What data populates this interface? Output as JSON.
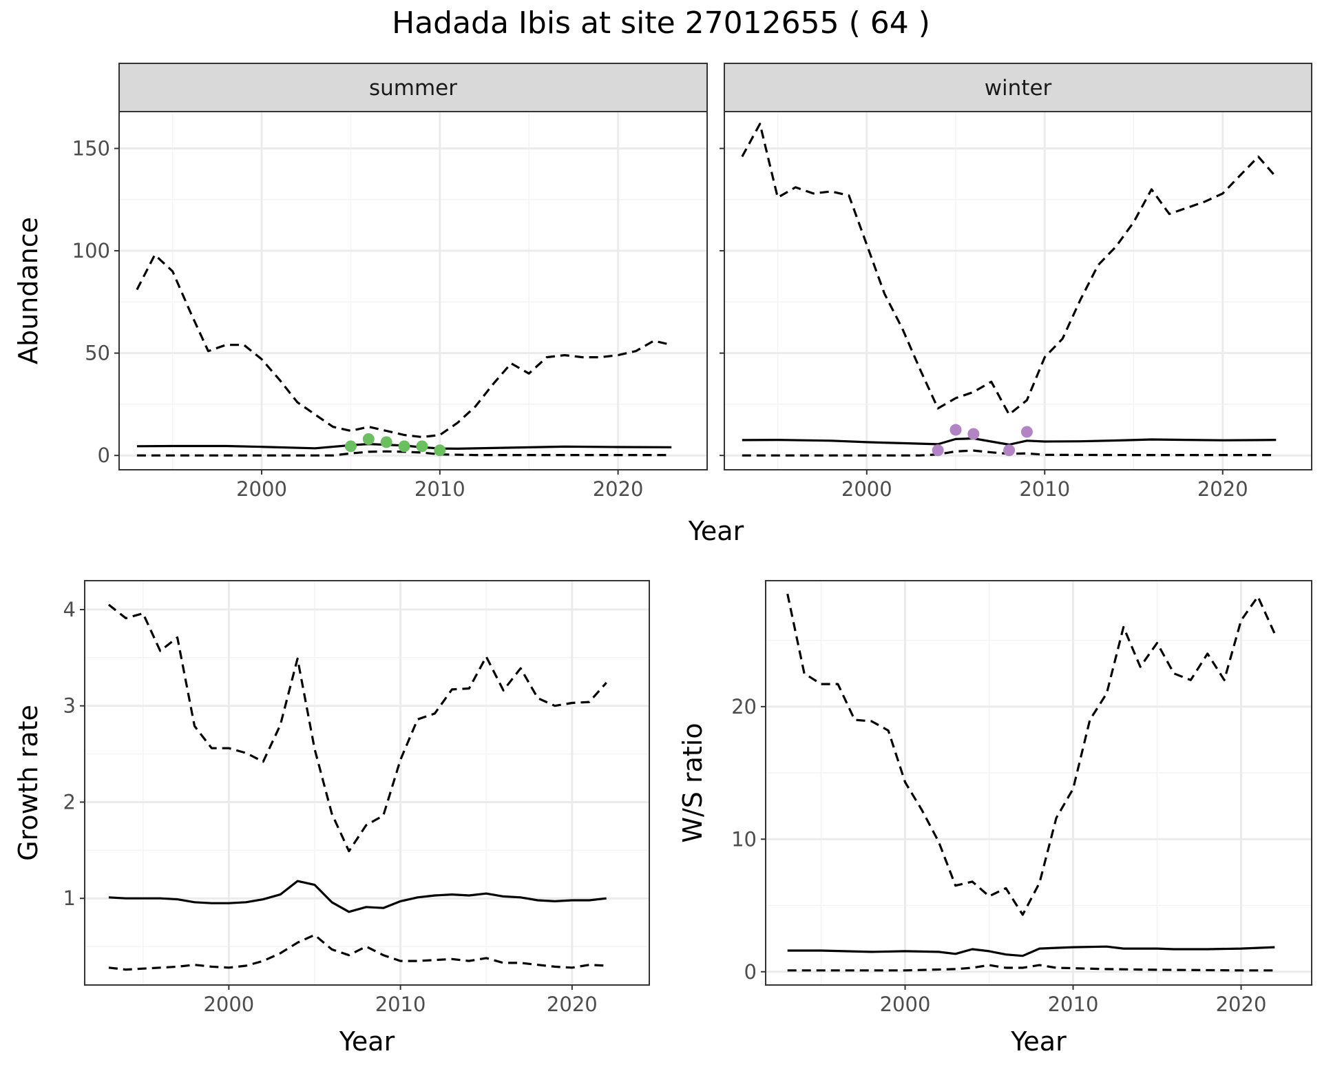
{
  "figure": {
    "title": "Hadada Ibis at site 27012655 ( 64 )"
  },
  "chart_data": [
    {
      "type": "line",
      "panel": "summer",
      "strip_label": "summer",
      "ylabel": "Abundance",
      "xlabel": "Year",
      "xlim": [
        1992,
        2025
      ],
      "ylim": [
        -7,
        168
      ],
      "xticks": [
        2000,
        2010,
        2020
      ],
      "yticks": [
        0,
        50,
        100,
        150
      ],
      "grid": true,
      "series": [
        {
          "role": "mean",
          "style": "solid",
          "color": "#000000",
          "x": [
            1993,
            1995,
            1998,
            2000,
            2003,
            2005,
            2006,
            2007,
            2008,
            2009,
            2010,
            2011,
            2014,
            2017,
            2020,
            2023
          ],
          "y": [
            4.5,
            4.6,
            4.6,
            4.2,
            3.5,
            5,
            5.6,
            5.2,
            4.8,
            4.0,
            3.4,
            3.3,
            3.8,
            4.3,
            4.1,
            4.0
          ]
        },
        {
          "role": "upper",
          "style": "dashed",
          "color": "#000000",
          "x": [
            1993,
            1994,
            1995,
            1996,
            1997,
            1998,
            1999,
            2000,
            2001,
            2002,
            2003,
            2004,
            2005,
            2006,
            2007,
            2008,
            2009,
            2010,
            2011,
            2012,
            2013,
            2014,
            2015,
            2016,
            2017,
            2018,
            2019,
            2020,
            2021,
            2022,
            2023
          ],
          "y": [
            81,
            98,
            90,
            70,
            51,
            54,
            54,
            47,
            37,
            26,
            20,
            14,
            12,
            14,
            12,
            10,
            9,
            10,
            16,
            24,
            35,
            45,
            40,
            48,
            49,
            48,
            48,
            49,
            51,
            56,
            54
          ]
        },
        {
          "role": "lower",
          "style": "dashed",
          "color": "#000000",
          "x": [
            1993,
            1995,
            2000,
            2004,
            2005,
            2006,
            2007,
            2008,
            2009,
            2010,
            2012,
            2015,
            2020,
            2023
          ],
          "y": [
            0,
            0,
            0,
            0,
            1,
            1.8,
            2,
            1.8,
            1.4,
            0.5,
            0.2,
            0.2,
            0.2,
            0.2
          ]
        }
      ],
      "points": {
        "color": "#6abf5e",
        "x": [
          2005,
          2006,
          2007,
          2008,
          2009,
          2010
        ],
        "y": [
          4.5,
          8,
          6.5,
          4.5,
          4.5,
          2.5
        ]
      }
    },
    {
      "type": "line",
      "panel": "winter",
      "strip_label": "winter",
      "ylabel": "",
      "xlabel": "Year",
      "xlim": [
        1992,
        2025
      ],
      "ylim": [
        -7,
        168
      ],
      "xticks": [
        2000,
        2010,
        2020
      ],
      "yticks": [
        0,
        50,
        100,
        150
      ],
      "grid": true,
      "series": [
        {
          "role": "mean",
          "style": "solid",
          "color": "#000000",
          "x": [
            1993,
            1995,
            1998,
            2000,
            2002,
            2004,
            2005,
            2006,
            2007,
            2008,
            2009,
            2010,
            2012,
            2014,
            2016,
            2018,
            2020,
            2022,
            2023
          ],
          "y": [
            7.5,
            7.6,
            7.2,
            6.5,
            6,
            5.5,
            8,
            8.3,
            6.8,
            5.3,
            7.2,
            6.8,
            6.9,
            7.3,
            7.8,
            7.6,
            7.4,
            7.5,
            7.6
          ]
        },
        {
          "role": "upper",
          "style": "dashed",
          "color": "#000000",
          "x": [
            1993,
            1994,
            1995,
            1996,
            1997,
            1998,
            1999,
            2000,
            2001,
            2002,
            2003,
            2004,
            2005,
            2006,
            2007,
            2008,
            2009,
            2010,
            2011,
            2012,
            2013,
            2014,
            2015,
            2016,
            2017,
            2018,
            2019,
            2020,
            2021,
            2022,
            2023
          ],
          "y": [
            146,
            162,
            126,
            131,
            128,
            129,
            127,
            103,
            79,
            62,
            42,
            23,
            28,
            31,
            36,
            20,
            27,
            48,
            57,
            76,
            93,
            102,
            114,
            130,
            118,
            121,
            124,
            128,
            137,
            146,
            136
          ]
        },
        {
          "role": "lower",
          "style": "dashed",
          "color": "#000000",
          "x": [
            1993,
            2000,
            2003,
            2004,
            2005,
            2006,
            2007,
            2008,
            2009,
            2010,
            2015,
            2023
          ],
          "y": [
            0,
            0,
            0,
            0.5,
            2,
            2.4,
            1.5,
            0.8,
            1,
            0.3,
            0.2,
            0.2
          ]
        }
      ],
      "points": {
        "color": "#b284c6",
        "x": [
          2004,
          2005,
          2006,
          2008,
          2009
        ],
        "y": [
          2.5,
          12.5,
          10.5,
          2.5,
          11.5
        ]
      }
    },
    {
      "type": "line",
      "panel": "growth",
      "ylabel": "Growth rate",
      "xlabel": "Year",
      "xlim": [
        1991.6,
        2024.5
      ],
      "ylim": [
        0.1,
        4.3
      ],
      "xticks": [
        2000,
        2010,
        2020
      ],
      "yticks": [
        1,
        2,
        3,
        4
      ],
      "grid": true,
      "series": [
        {
          "role": "mean",
          "style": "solid",
          "color": "#000000",
          "x": [
            1993,
            1994,
            1995,
            1996,
            1997,
            1998,
            1999,
            2000,
            2001,
            2002,
            2003,
            2004,
            2005,
            2006,
            2007,
            2008,
            2009,
            2010,
            2011,
            2012,
            2013,
            2014,
            2015,
            2016,
            2017,
            2018,
            2019,
            2020,
            2021,
            2022
          ],
          "y": [
            1.01,
            1.0,
            1.0,
            1.0,
            0.99,
            0.96,
            0.95,
            0.95,
            0.96,
            0.99,
            1.04,
            1.18,
            1.14,
            0.96,
            0.86,
            0.91,
            0.9,
            0.97,
            1.01,
            1.03,
            1.04,
            1.03,
            1.05,
            1.02,
            1.01,
            0.98,
            0.97,
            0.98,
            0.98,
            1.0
          ]
        },
        {
          "role": "upper",
          "style": "dashed",
          "color": "#000000",
          "x": [
            1993,
            1994,
            1995,
            1996,
            1997,
            1998,
            1999,
            2000,
            2001,
            2002,
            2003,
            2004,
            2005,
            2006,
            2007,
            2008,
            2009,
            2010,
            2011,
            2012,
            2013,
            2014,
            2015,
            2016,
            2017,
            2018,
            2019,
            2020,
            2021,
            2022
          ],
          "y": [
            4.05,
            3.91,
            3.96,
            3.57,
            3.71,
            2.79,
            2.56,
            2.56,
            2.51,
            2.42,
            2.8,
            3.49,
            2.55,
            1.88,
            1.49,
            1.76,
            1.86,
            2.44,
            2.86,
            2.92,
            3.17,
            3.18,
            3.51,
            3.16,
            3.39,
            3.08,
            3.0,
            3.03,
            3.04,
            3.24
          ]
        },
        {
          "role": "lower",
          "style": "dashed",
          "color": "#000000",
          "x": [
            1993,
            1994,
            1995,
            1996,
            1997,
            1998,
            1999,
            2000,
            2001,
            2002,
            2003,
            2004,
            2005,
            2006,
            2007,
            2008,
            2009,
            2010,
            2011,
            2012,
            2013,
            2014,
            2015,
            2016,
            2017,
            2018,
            2019,
            2020,
            2021,
            2022
          ],
          "y": [
            0.28,
            0.26,
            0.27,
            0.28,
            0.29,
            0.31,
            0.29,
            0.28,
            0.3,
            0.35,
            0.43,
            0.54,
            0.62,
            0.47,
            0.41,
            0.5,
            0.41,
            0.35,
            0.35,
            0.36,
            0.37,
            0.35,
            0.38,
            0.33,
            0.33,
            0.31,
            0.29,
            0.28,
            0.31,
            0.3
          ]
        }
      ]
    },
    {
      "type": "line",
      "panel": "ratio",
      "ylabel": "W/S ratio",
      "xlabel": "Year",
      "xlim": [
        1991.7,
        2024.2
      ],
      "ylim": [
        -1,
        29.5
      ],
      "xticks": [
        2000,
        2010,
        2020
      ],
      "yticks": [
        0,
        10,
        20
      ],
      "grid": true,
      "series": [
        {
          "role": "mean",
          "style": "solid",
          "color": "#000000",
          "x": [
            1993,
            1995,
            1998,
            2000,
            2002,
            2003,
            2004,
            2005,
            2006,
            2007,
            2008,
            2010,
            2012,
            2013,
            2015,
            2016,
            2018,
            2020,
            2022
          ],
          "y": [
            1.6,
            1.6,
            1.5,
            1.55,
            1.5,
            1.35,
            1.7,
            1.55,
            1.3,
            1.2,
            1.75,
            1.85,
            1.9,
            1.75,
            1.75,
            1.7,
            1.7,
            1.75,
            1.85
          ]
        },
        {
          "role": "upper",
          "style": "dashed",
          "color": "#000000",
          "x": [
            1993,
            1994,
            1995,
            1996,
            1997,
            1998,
            1999,
            2000,
            2001,
            2002,
            2003,
            2004,
            2005,
            2006,
            2007,
            2008,
            2009,
            2010,
            2011,
            2012,
            2013,
            2014,
            2015,
            2016,
            2017,
            2018,
            2019,
            2020,
            2021,
            2022
          ],
          "y": [
            28.5,
            22.5,
            21.7,
            21.7,
            19,
            18.9,
            18.2,
            14.3,
            12.2,
            9.8,
            6.5,
            6.8,
            5.7,
            6.3,
            4.3,
            6.7,
            11.6,
            13.8,
            19,
            21,
            26,
            23,
            24.8,
            22.5,
            22,
            24,
            22,
            26.5,
            28.3,
            25.5
          ]
        },
        {
          "role": "lower",
          "style": "dashed",
          "color": "#000000",
          "x": [
            1993,
            1995,
            2000,
            2003,
            2004,
            2005,
            2006,
            2007,
            2008,
            2009,
            2012,
            2015,
            2020,
            2022
          ],
          "y": [
            0.1,
            0.1,
            0.1,
            0.2,
            0.3,
            0.5,
            0.3,
            0.3,
            0.5,
            0.3,
            0.2,
            0.15,
            0.1,
            0.1
          ]
        }
      ]
    }
  ],
  "colors": {
    "panel_border": "#333333",
    "strip_fill": "#d9d9d9",
    "grid_major": "#ebebeb",
    "grid_minor": "#f3f3f3",
    "tick_text": "#4d4d4d"
  }
}
